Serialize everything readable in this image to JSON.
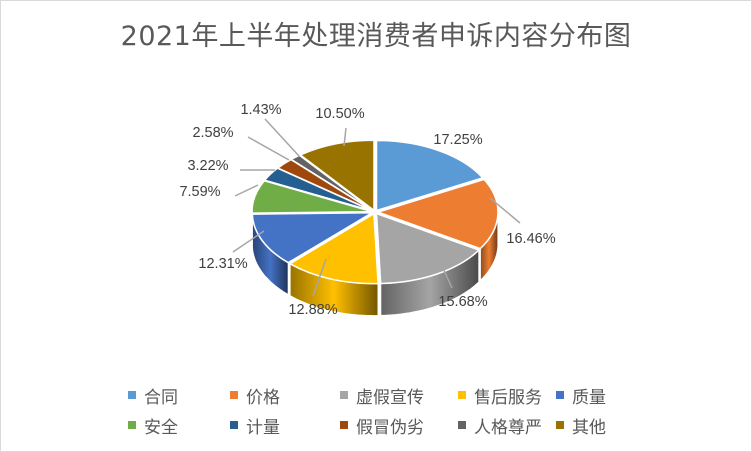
{
  "chart_data": {
    "type": "pie",
    "subtype": "3d-exploded-pie",
    "title": "2021年上半年处理消费者申诉内容分布图",
    "categories": [
      "合同",
      "价格",
      "虚假宣传",
      "售后服务",
      "质量",
      "安全",
      "计量",
      "假冒伪劣",
      "人格尊严",
      "其他"
    ],
    "values": [
      17.25,
      16.46,
      15.68,
      12.88,
      12.31,
      7.59,
      3.22,
      2.58,
      1.43,
      10.5
    ],
    "labels": [
      "17.25%",
      "16.46%",
      "15.68%",
      "12.88%",
      "12.31%",
      "7.59%",
      "3.22%",
      "2.58%",
      "1.43%",
      "10.50%"
    ],
    "colors": [
      "#5b9bd5",
      "#ed7d31",
      "#a5a5a5",
      "#ffc000",
      "#4472c4",
      "#70ad47",
      "#255e91",
      "#9e480e",
      "#636363",
      "#997300"
    ],
    "legend_position": "bottom",
    "unit": "%"
  },
  "legend": {
    "rows": [
      [
        {
          "label": "合同",
          "color": "#5b9bd5"
        },
        {
          "label": "价格",
          "color": "#ed7d31"
        },
        {
          "label": "虚假宣传",
          "color": "#a5a5a5"
        },
        {
          "label": "售后服务",
          "color": "#ffc000"
        },
        {
          "label": "质量",
          "color": "#4472c4"
        }
      ],
      [
        {
          "label": "安全",
          "color": "#70ad47"
        },
        {
          "label": "计量",
          "color": "#255e91"
        },
        {
          "label": "假冒伪劣",
          "color": "#9e480e"
        },
        {
          "label": "人格尊严",
          "color": "#636363"
        },
        {
          "label": "其他",
          "color": "#997300"
        }
      ]
    ]
  }
}
